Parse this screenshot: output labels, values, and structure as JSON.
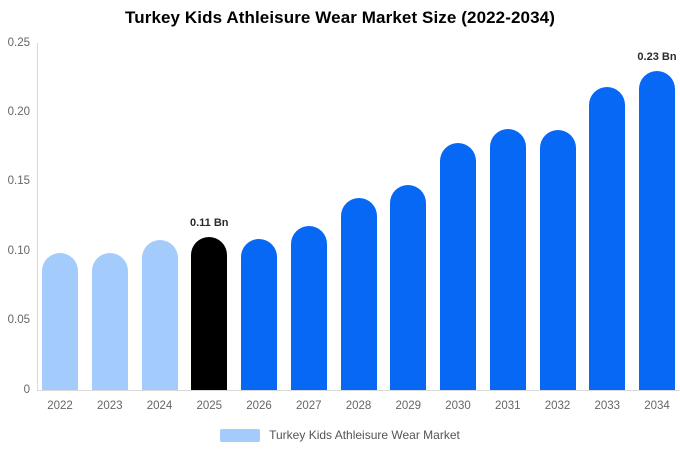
{
  "chart_data": {
    "type": "bar",
    "title": "Turkey Kids Athleisure Wear Market Size (2022-2034)",
    "categories": [
      "2022",
      "2023",
      "2024",
      "2025",
      "2026",
      "2027",
      "2028",
      "2029",
      "2030",
      "2031",
      "2032",
      "2033",
      "2034"
    ],
    "values": [
      0.099,
      0.099,
      0.108,
      0.11,
      0.109,
      0.118,
      0.138,
      0.148,
      0.178,
      0.188,
      0.187,
      0.218,
      0.23
    ],
    "unit": "Bn",
    "ylim": [
      0,
      0.25
    ],
    "yticks": [
      "0",
      "0.05",
      "0.10",
      "0.15",
      "0.20",
      "0.25"
    ],
    "ytick_values": [
      0,
      0.05,
      0.1,
      0.15,
      0.2,
      0.25
    ],
    "grid": false,
    "legend_position": "bottom-center",
    "colors": [
      "#a3ccfc",
      "#a3ccfc",
      "#a3ccfc",
      "#000000",
      "#0868f6",
      "#0868f6",
      "#0868f6",
      "#0868f6",
      "#0868f6",
      "#0868f6",
      "#0868f6",
      "#0868f6",
      "#0868f6"
    ],
    "annotations": [
      {
        "category": "2025",
        "text": "0.11 Bn"
      },
      {
        "category": "2034",
        "text": "0.23 Bn"
      }
    ]
  },
  "legend": {
    "label": "Turkey Kids Athleisure Wear Market",
    "swatch_color": "#a3ccfc"
  }
}
